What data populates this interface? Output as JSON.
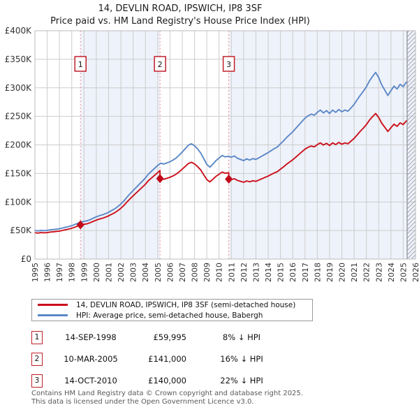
{
  "title": {
    "line1": "14, DEVLIN ROAD, IPSWICH, IP8 3SF",
    "line2": "Price paid vs. HM Land Registry's House Price Index (HPI)"
  },
  "chart_data": {
    "type": "line",
    "title": "14, DEVLIN ROAD, IPSWICH, IP8 3SF",
    "subtitle": "Price paid vs. HM Land Registry's House Price Index (HPI)",
    "y_axis": {
      "ticks": [
        "£0",
        "£50K",
        "£100K",
        "£150K",
        "£200K",
        "£250K",
        "£300K",
        "£350K",
        "£400K"
      ],
      "max_k": 400
    },
    "x_axis": {
      "ticks": [
        "1995",
        "1996",
        "1997",
        "1998",
        "1999",
        "2000",
        "2001",
        "2002",
        "2003",
        "2004",
        "2005",
        "2006",
        "2007",
        "2008",
        "2009",
        "2010",
        "2011",
        "2012",
        "2013",
        "2014",
        "2015",
        "2016",
        "2017",
        "2018",
        "2019",
        "2020",
        "2021",
        "2022",
        "2023",
        "2024",
        "2025",
        "2026"
      ],
      "start": 1995,
      "end": 2026,
      "future_hatch_from": 2025.32
    },
    "grid": "on",
    "legend_position": "below",
    "colors": {
      "band": "#eef2fa",
      "grid": "#cccccc",
      "frame": "#bbbbbb",
      "sale_line": "#f28b8b",
      "sale_marker": "#c00819",
      "hatch": "#a9a9b2",
      "axis_text": "#333333"
    },
    "shaded_bands": [
      {
        "from": 1998.71,
        "to": 2005.19
      },
      {
        "from": 2010.79,
        "to": 2026
      }
    ],
    "series": [
      {
        "name": "14, DEVLIN ROAD, IPSWICH, IP8 3SF (semi-detached house)",
        "color": "#cc0f1a",
        "points": [
          [
            1995.0,
            46.2
          ],
          [
            1995.25,
            45.5
          ],
          [
            1995.5,
            46.3
          ],
          [
            1995.75,
            46.0
          ],
          [
            1996.0,
            46.4
          ],
          [
            1996.25,
            47.3
          ],
          [
            1996.5,
            47.8
          ],
          [
            1996.75,
            48.4
          ],
          [
            1997.0,
            49.1
          ],
          [
            1997.25,
            50.1
          ],
          [
            1997.5,
            51.5
          ],
          [
            1997.75,
            52.6
          ],
          [
            1998.0,
            54.0
          ],
          [
            1998.25,
            55.8
          ],
          [
            1998.5,
            58.0
          ],
          [
            1998.71,
            60.0
          ],
          [
            1999.0,
            60.9
          ],
          [
            1999.25,
            61.8
          ],
          [
            1999.5,
            63.7
          ],
          [
            1999.75,
            66.0
          ],
          [
            2000.0,
            68.3
          ],
          [
            2000.25,
            70.1
          ],
          [
            2000.5,
            71.5
          ],
          [
            2000.75,
            73.4
          ],
          [
            2001.0,
            75.7
          ],
          [
            2001.25,
            78.5
          ],
          [
            2001.5,
            81.2
          ],
          [
            2001.75,
            84.9
          ],
          [
            2002.0,
            89.1
          ],
          [
            2002.25,
            94.1
          ],
          [
            2002.5,
            100.1
          ],
          [
            2002.75,
            105.7
          ],
          [
            2003.0,
            110.8
          ],
          [
            2003.25,
            115.8
          ],
          [
            2003.5,
            120.9
          ],
          [
            2003.75,
            126.0
          ],
          [
            2004.0,
            131.1
          ],
          [
            2004.25,
            137.5
          ],
          [
            2004.5,
            142.1
          ],
          [
            2004.75,
            146.8
          ],
          [
            2005.0,
            151.4
          ],
          [
            2005.19,
            155.1
          ],
          [
            2005.19,
            141.0
          ],
          [
            2005.25,
            141.1
          ],
          [
            2005.5,
            139.8
          ],
          [
            2005.75,
            141.5
          ],
          [
            2006.0,
            143.2
          ],
          [
            2006.25,
            145.7
          ],
          [
            2006.5,
            148.7
          ],
          [
            2006.75,
            152.8
          ],
          [
            2007.0,
            157.5
          ],
          [
            2007.25,
            162.5
          ],
          [
            2007.5,
            167.5
          ],
          [
            2007.75,
            169.6
          ],
          [
            2008.0,
            166.7
          ],
          [
            2008.25,
            162.1
          ],
          [
            2008.5,
            156.2
          ],
          [
            2008.75,
            147.8
          ],
          [
            2009.0,
            139.4
          ],
          [
            2009.25,
            135.2
          ],
          [
            2009.5,
            139.8
          ],
          [
            2009.75,
            144.9
          ],
          [
            2010.0,
            148.6
          ],
          [
            2010.25,
            152.4
          ],
          [
            2010.5,
            150.3
          ],
          [
            2010.79,
            151.2
          ],
          [
            2010.79,
            140.0
          ],
          [
            2011.0,
            139.2
          ],
          [
            2011.25,
            140.8
          ],
          [
            2011.5,
            137.7
          ],
          [
            2011.75,
            136.1
          ],
          [
            2012.0,
            134.6
          ],
          [
            2012.25,
            136.9
          ],
          [
            2012.5,
            135.3
          ],
          [
            2012.75,
            137.3
          ],
          [
            2013.0,
            136.1
          ],
          [
            2013.25,
            138.5
          ],
          [
            2013.5,
            140.8
          ],
          [
            2013.75,
            143.1
          ],
          [
            2014.0,
            145.5
          ],
          [
            2014.25,
            148.2
          ],
          [
            2014.5,
            150.9
          ],
          [
            2014.75,
            153.3
          ],
          [
            2015.0,
            157.6
          ],
          [
            2015.25,
            161.5
          ],
          [
            2015.5,
            166.1
          ],
          [
            2015.75,
            170.0
          ],
          [
            2016.0,
            174.0
          ],
          [
            2016.25,
            178.6
          ],
          [
            2016.5,
            183.3
          ],
          [
            2016.75,
            188.0
          ],
          [
            2017.0,
            192.7
          ],
          [
            2017.25,
            195.8
          ],
          [
            2017.5,
            198.1
          ],
          [
            2017.75,
            196.6
          ],
          [
            2018.0,
            200.5
          ],
          [
            2018.25,
            203.6
          ],
          [
            2018.5,
            199.7
          ],
          [
            2018.75,
            202.8
          ],
          [
            2019.0,
            198.9
          ],
          [
            2019.25,
            203.6
          ],
          [
            2019.5,
            200.5
          ],
          [
            2019.75,
            204.4
          ],
          [
            2020.0,
            201.2
          ],
          [
            2020.25,
            203.6
          ],
          [
            2020.5,
            202.0
          ],
          [
            2020.75,
            206.7
          ],
          [
            2021.0,
            211.4
          ],
          [
            2021.25,
            217.6
          ],
          [
            2021.5,
            223.9
          ],
          [
            2021.75,
            229.3
          ],
          [
            2022.0,
            235.6
          ],
          [
            2022.25,
            243.4
          ],
          [
            2022.5,
            249.6
          ],
          [
            2022.75,
            255.1
          ],
          [
            2023.0,
            248.0
          ],
          [
            2023.25,
            237.9
          ],
          [
            2023.5,
            230.9
          ],
          [
            2023.75,
            223.5
          ],
          [
            2024.0,
            230.1
          ],
          [
            2024.25,
            236.3
          ],
          [
            2024.5,
            232.4
          ],
          [
            2024.75,
            238.7
          ],
          [
            2025.0,
            235.6
          ],
          [
            2025.25,
            241.8
          ]
        ]
      },
      {
        "name": "HPI: Average price, semi-detached house, Babergh",
        "color": "#5b87c7",
        "points": [
          [
            1995.0,
            50.0
          ],
          [
            1995.25,
            49.3
          ],
          [
            1995.5,
            50.2
          ],
          [
            1995.75,
            49.8
          ],
          [
            1996.0,
            50.3
          ],
          [
            1996.25,
            51.2
          ],
          [
            1996.5,
            51.8
          ],
          [
            1996.75,
            52.4
          ],
          [
            1997.0,
            53.2
          ],
          [
            1997.25,
            54.3
          ],
          [
            1997.5,
            55.8
          ],
          [
            1997.75,
            57.0
          ],
          [
            1998.0,
            58.5
          ],
          [
            1998.25,
            60.5
          ],
          [
            1998.5,
            62.8
          ],
          [
            1998.71,
            65.0
          ],
          [
            1999.0,
            66.0
          ],
          [
            1999.25,
            67.0
          ],
          [
            1999.5,
            69.0
          ],
          [
            1999.75,
            71.5
          ],
          [
            2000.0,
            74.0
          ],
          [
            2000.25,
            76.0
          ],
          [
            2000.5,
            77.5
          ],
          [
            2000.75,
            79.5
          ],
          [
            2001.0,
            82.0
          ],
          [
            2001.25,
            85.0
          ],
          [
            2001.5,
            88.0
          ],
          [
            2001.75,
            92.0
          ],
          [
            2002.0,
            96.5
          ],
          [
            2002.25,
            102.0
          ],
          [
            2002.5,
            108.5
          ],
          [
            2002.75,
            114.5
          ],
          [
            2003.0,
            120.0
          ],
          [
            2003.25,
            125.5
          ],
          [
            2003.5,
            131.0
          ],
          [
            2003.75,
            136.5
          ],
          [
            2004.0,
            142.0
          ],
          [
            2004.25,
            149.0
          ],
          [
            2004.5,
            154.0
          ],
          [
            2004.75,
            159.0
          ],
          [
            2005.0,
            164.0
          ],
          [
            2005.25,
            168.0
          ],
          [
            2005.5,
            166.5
          ],
          [
            2005.75,
            168.5
          ],
          [
            2006.0,
            170.5
          ],
          [
            2006.25,
            173.5
          ],
          [
            2006.5,
            177.0
          ],
          [
            2006.75,
            182.0
          ],
          [
            2007.0,
            187.5
          ],
          [
            2007.25,
            193.5
          ],
          [
            2007.5,
            199.5
          ],
          [
            2007.75,
            202.0
          ],
          [
            2008.0,
            198.5
          ],
          [
            2008.25,
            193.0
          ],
          [
            2008.5,
            186.0
          ],
          [
            2008.75,
            176.0
          ],
          [
            2009.0,
            166.0
          ],
          [
            2009.25,
            161.0
          ],
          [
            2009.5,
            166.5
          ],
          [
            2009.75,
            172.5
          ],
          [
            2010.0,
            177.0
          ],
          [
            2010.25,
            181.5
          ],
          [
            2010.5,
            179.0
          ],
          [
            2010.75,
            180.0
          ],
          [
            2011.0,
            178.5
          ],
          [
            2011.25,
            180.5
          ],
          [
            2011.5,
            176.5
          ],
          [
            2011.75,
            174.5
          ],
          [
            2012.0,
            172.5
          ],
          [
            2012.25,
            175.5
          ],
          [
            2012.5,
            173.5
          ],
          [
            2012.75,
            176.0
          ],
          [
            2013.0,
            174.5
          ],
          [
            2013.25,
            177.5
          ],
          [
            2013.5,
            180.5
          ],
          [
            2013.75,
            183.5
          ],
          [
            2014.0,
            186.5
          ],
          [
            2014.25,
            190.0
          ],
          [
            2014.5,
            193.5
          ],
          [
            2014.75,
            196.5
          ],
          [
            2015.0,
            202.0
          ],
          [
            2015.25,
            207.0
          ],
          [
            2015.5,
            213.0
          ],
          [
            2015.75,
            218.0
          ],
          [
            2016.0,
            223.0
          ],
          [
            2016.25,
            229.0
          ],
          [
            2016.5,
            235.0
          ],
          [
            2016.75,
            241.0
          ],
          [
            2017.0,
            247.0
          ],
          [
            2017.25,
            251.0
          ],
          [
            2017.5,
            254.0
          ],
          [
            2017.75,
            252.0
          ],
          [
            2018.0,
            257.0
          ],
          [
            2018.25,
            261.0
          ],
          [
            2018.5,
            256.0
          ],
          [
            2018.75,
            260.0
          ],
          [
            2019.0,
            255.0
          ],
          [
            2019.25,
            261.0
          ],
          [
            2019.5,
            257.0
          ],
          [
            2019.75,
            262.0
          ],
          [
            2020.0,
            258.0
          ],
          [
            2020.25,
            261.0
          ],
          [
            2020.5,
            259.0
          ],
          [
            2020.75,
            265.0
          ],
          [
            2021.0,
            271.0
          ],
          [
            2021.25,
            279.0
          ],
          [
            2021.5,
            287.0
          ],
          [
            2021.75,
            294.0
          ],
          [
            2022.0,
            302.0
          ],
          [
            2022.25,
            312.0
          ],
          [
            2022.5,
            320.0
          ],
          [
            2022.75,
            327.0
          ],
          [
            2023.0,
            318.0
          ],
          [
            2023.25,
            305.0
          ],
          [
            2023.5,
            296.0
          ],
          [
            2023.75,
            286.5
          ],
          [
            2024.0,
            295.0
          ],
          [
            2024.25,
            303.0
          ],
          [
            2024.5,
            298.0
          ],
          [
            2024.75,
            306.0
          ],
          [
            2025.0,
            302.0
          ],
          [
            2025.25,
            310.0
          ]
        ]
      }
    ]
  },
  "sales": [
    {
      "label": "1",
      "date": "14-SEP-1998",
      "price": "£59,995",
      "vs_hpi": "8% ↓ HPI",
      "x": 1998.71,
      "price_k": 60.0
    },
    {
      "label": "2",
      "date": "10-MAR-2005",
      "price": "£141,000",
      "vs_hpi": "16% ↓ HPI",
      "x": 2005.19,
      "price_k": 141.0
    },
    {
      "label": "3",
      "date": "14-OCT-2010",
      "price": "£140,000",
      "vs_hpi": "22% ↓ HPI",
      "x": 2010.79,
      "price_k": 140.0
    }
  ],
  "footer": {
    "line1": "Contains HM Land Registry data © Crown copyright and database right 2025.",
    "line2": "This data is licensed under the Open Government Licence v3.0."
  }
}
